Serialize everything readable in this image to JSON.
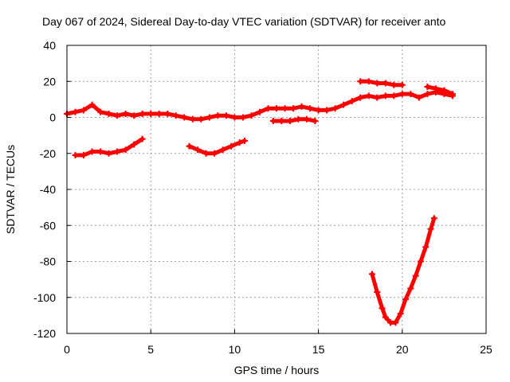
{
  "chart_data": {
    "type": "line",
    "title": "Day 067 of 2024, Sidereal Day-to-day VTEC variation (SDTVAR) for receiver anto",
    "xlabel": "GPS time / hours",
    "ylabel": "SDTVAR / TECUs",
    "xlim": [
      0,
      25
    ],
    "ylim": [
      -120,
      40
    ],
    "xticks": [
      "0",
      "5",
      "10",
      "15",
      "20",
      "25"
    ],
    "yticks": [
      "40",
      "20",
      "0",
      "-20",
      "-40",
      "-60",
      "-80",
      "-100",
      "-120"
    ],
    "grid": true,
    "color": "#ff0000",
    "series": [
      {
        "x": [
          0,
          0.5,
          1.0,
          1.5,
          2.0,
          2.5,
          3.0,
          3.5,
          4.0,
          4.5,
          5.0,
          5.5,
          6.0,
          6.5,
          7.0,
          7.5,
          8.0,
          8.5,
          9.0,
          9.5,
          10.0,
          10.5,
          11.0,
          11.5,
          12.0,
          12.5,
          13.0,
          13.5,
          14.0,
          14.5,
          15.0,
          15.5,
          16.0,
          16.5,
          17.0,
          17.5,
          18.0,
          18.5,
          19.0,
          19.5,
          20.0,
          20.5,
          21.0,
          21.5,
          22.0,
          22.5,
          23.0
        ],
        "y": [
          2,
          3,
          4,
          7,
          3,
          2,
          1,
          2,
          1,
          2,
          2,
          2,
          2,
          1,
          0,
          -1,
          -1,
          0,
          1,
          1,
          0,
          0,
          1,
          3,
          5,
          5,
          5,
          5,
          6,
          5,
          4,
          4,
          5,
          7,
          9,
          11,
          12,
          11,
          12,
          12,
          13,
          13,
          11,
          13,
          14,
          13,
          12
        ]
      },
      {
        "x": [
          0.5,
          1.0,
          1.5,
          2.0,
          2.5,
          3.0,
          3.5,
          4.0,
          4.5
        ],
        "y": [
          -21,
          -21,
          -19,
          -19,
          -20,
          -19,
          -18,
          -15,
          -12
        ]
      },
      {
        "x": [
          7.3,
          7.8,
          8.3,
          8.8,
          9.3,
          9.8,
          10.3,
          10.6
        ],
        "y": [
          -16,
          -18,
          -20,
          -20,
          -18,
          -16,
          -14,
          -13
        ]
      },
      {
        "x": [
          12.3,
          12.8,
          13.3,
          13.8,
          14.3,
          14.8
        ],
        "y": [
          -2,
          -2,
          -2,
          -1,
          -1,
          -2
        ]
      },
      {
        "x": [
          17.5,
          18.0,
          18.5,
          19.0,
          19.5,
          20.0
        ],
        "y": [
          20,
          20,
          19,
          19,
          18,
          18
        ]
      },
      {
        "x": [
          21.5,
          22.0,
          22.5,
          23.0
        ],
        "y": [
          17,
          16,
          15,
          13
        ]
      },
      {
        "x": [
          18.2,
          18.5,
          18.8,
          19.0,
          19.3,
          19.6,
          19.9,
          20.2,
          20.5,
          20.8,
          21.1,
          21.4,
          21.7,
          21.9
        ],
        "y": [
          -87,
          -97,
          -106,
          -111,
          -114,
          -114,
          -109,
          -101,
          -95,
          -88,
          -80,
          -72,
          -62,
          -56
        ]
      }
    ]
  }
}
